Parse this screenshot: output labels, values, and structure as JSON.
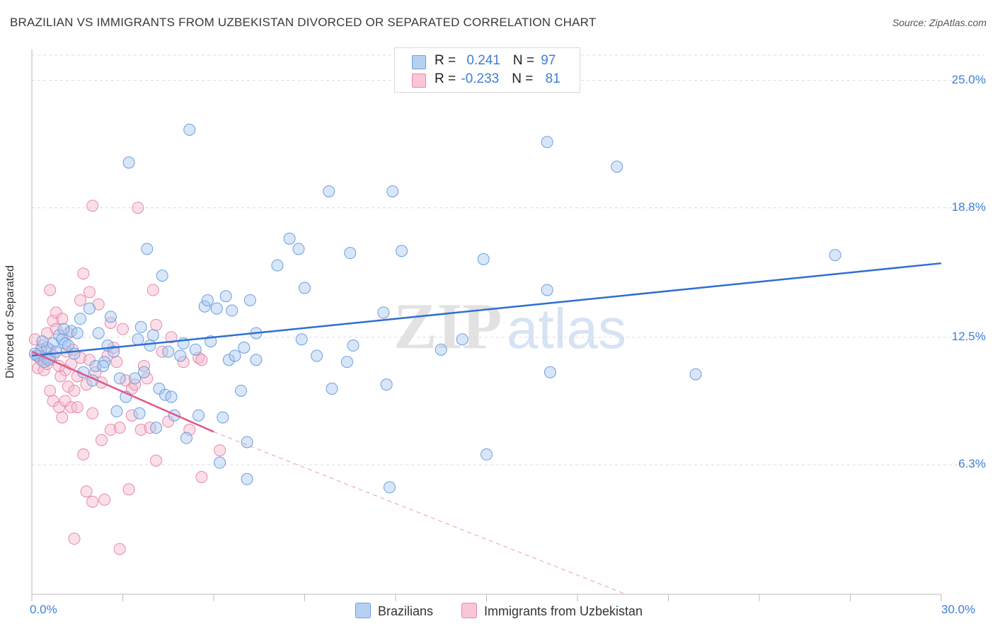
{
  "title": "BRAZILIAN VS IMMIGRANTS FROM UZBEKISTAN DIVORCED OR SEPARATED CORRELATION CHART",
  "source": "Source: ZipAtlas.com",
  "watermark": {
    "zip": "ZIP",
    "atlas": "atlas"
  },
  "legend": {
    "rows": [
      {
        "r_label": "R = ",
        "r_value": "0.241",
        "n_label": "N = ",
        "n_value": "97"
      },
      {
        "r_label": "R = ",
        "r_value": "-0.233",
        "n_label": "N = ",
        "n_value": "81"
      }
    ]
  },
  "bottom_legend": [
    "Brazilians",
    "Immigrants from Uzbekistan"
  ],
  "colors": {
    "blue_fill": "#a9c8f0",
    "blue_stroke": "#6b9fe0",
    "blue_line": "#2f6fd0",
    "pink_fill": "#f7b7cb",
    "pink_stroke": "#e889a8",
    "pink_line": "#e2578a",
    "tick_text": "#3d7fd6",
    "grid": "#dcdcdc"
  },
  "chart_data": {
    "type": "scatter",
    "title": "BRAZILIAN VS IMMIGRANTS FROM UZBEKISTAN DIVORCED OR SEPARATED CORRELATION CHART",
    "xlabel": "",
    "ylabel": "Divorced or Separated",
    "xlim": [
      0,
      30
    ],
    "ylim": [
      0,
      26.5
    ],
    "x_tick_labels": [
      "0.0%",
      "30.0%"
    ],
    "y_ticks": [
      6.3,
      12.5,
      18.8,
      25.0
    ],
    "y_tick_labels": [
      "6.3%",
      "12.5%",
      "18.8%",
      "25.0%"
    ],
    "grid": true,
    "legend_position": "top-center",
    "series": [
      {
        "name": "Brazilians",
        "r": 0.241,
        "n": 97,
        "trend": [
          [
            0,
            11.6
          ],
          [
            30,
            16.1
          ]
        ],
        "points": [
          [
            0.2,
            11.6
          ],
          [
            0.3,
            11.9
          ],
          [
            0.4,
            11.3
          ],
          [
            0.5,
            12.0
          ],
          [
            0.6,
            11.5
          ],
          [
            0.7,
            12.2
          ],
          [
            0.8,
            11.8
          ],
          [
            0.9,
            12.6
          ],
          [
            1.0,
            12.4
          ],
          [
            1.1,
            12.2
          ],
          [
            1.2,
            12.1
          ],
          [
            1.3,
            12.8
          ],
          [
            1.4,
            11.7
          ],
          [
            1.5,
            12.7
          ],
          [
            1.6,
            13.4
          ],
          [
            1.7,
            10.8
          ],
          [
            1.9,
            13.9
          ],
          [
            2.0,
            10.4
          ],
          [
            2.1,
            11.1
          ],
          [
            2.2,
            12.7
          ],
          [
            2.4,
            11.3
          ],
          [
            2.5,
            12.1
          ],
          [
            2.6,
            13.5
          ],
          [
            2.7,
            11.8
          ],
          [
            2.8,
            8.9
          ],
          [
            2.9,
            10.5
          ],
          [
            3.1,
            9.6
          ],
          [
            3.2,
            21.0
          ],
          [
            3.4,
            10.5
          ],
          [
            3.5,
            12.4
          ],
          [
            3.6,
            13.0
          ],
          [
            3.7,
            10.8
          ],
          [
            3.8,
            16.8
          ],
          [
            3.9,
            12.1
          ],
          [
            4.0,
            12.6
          ],
          [
            4.1,
            8.1
          ],
          [
            4.2,
            10.0
          ],
          [
            4.3,
            15.5
          ],
          [
            4.4,
            9.7
          ],
          [
            4.5,
            11.8
          ],
          [
            4.6,
            9.6
          ],
          [
            4.7,
            8.7
          ],
          [
            4.9,
            11.6
          ],
          [
            5.0,
            12.2
          ],
          [
            5.1,
            7.6
          ],
          [
            5.2,
            22.6
          ],
          [
            5.4,
            11.9
          ],
          [
            5.5,
            8.7
          ],
          [
            5.7,
            14.0
          ],
          [
            5.8,
            14.3
          ],
          [
            5.9,
            12.3
          ],
          [
            6.1,
            13.9
          ],
          [
            6.2,
            6.4
          ],
          [
            6.3,
            8.6
          ],
          [
            6.4,
            14.5
          ],
          [
            6.5,
            11.4
          ],
          [
            6.6,
            13.8
          ],
          [
            6.7,
            11.6
          ],
          [
            6.9,
            9.9
          ],
          [
            7.0,
            12.0
          ],
          [
            7.1,
            5.6
          ],
          [
            7.1,
            7.4
          ],
          [
            7.2,
            14.3
          ],
          [
            7.4,
            11.4
          ],
          [
            7.4,
            12.7
          ],
          [
            8.1,
            16.0
          ],
          [
            8.5,
            17.3
          ],
          [
            8.8,
            16.8
          ],
          [
            8.9,
            12.4
          ],
          [
            9.0,
            14.9
          ],
          [
            9.4,
            11.6
          ],
          [
            9.8,
            19.6
          ],
          [
            9.9,
            10.0
          ],
          [
            10.4,
            11.3
          ],
          [
            10.5,
            16.6
          ],
          [
            10.6,
            12.1
          ],
          [
            11.6,
            13.7
          ],
          [
            11.7,
            10.2
          ],
          [
            11.8,
            5.2
          ],
          [
            11.9,
            19.6
          ],
          [
            12.2,
            16.7
          ],
          [
            13.5,
            11.9
          ],
          [
            14.2,
            12.4
          ],
          [
            14.9,
            16.3
          ],
          [
            15.0,
            6.8
          ],
          [
            17.0,
            14.8
          ],
          [
            17.1,
            10.8
          ],
          [
            17.0,
            22.0
          ],
          [
            19.3,
            20.8
          ],
          [
            21.9,
            10.7
          ],
          [
            26.5,
            16.5
          ],
          [
            0.1,
            11.7
          ],
          [
            0.35,
            12.3
          ],
          [
            0.55,
            11.4
          ],
          [
            1.05,
            12.9
          ],
          [
            2.35,
            11.1
          ],
          [
            3.55,
            8.8
          ]
        ]
      },
      {
        "name": "Immigrants from Uzbekistan",
        "r": -0.233,
        "n": 81,
        "trend": [
          [
            0,
            11.8
          ],
          [
            6.0,
            7.9
          ]
        ],
        "trend_dashed": [
          [
            6.0,
            7.9
          ],
          [
            19.6,
            0
          ]
        ],
        "points": [
          [
            0.1,
            12.4
          ],
          [
            0.2,
            11.0
          ],
          [
            0.3,
            11.4
          ],
          [
            0.4,
            10.9
          ],
          [
            0.5,
            12.7
          ],
          [
            0.5,
            11.2
          ],
          [
            0.6,
            9.9
          ],
          [
            0.6,
            11.9
          ],
          [
            0.7,
            9.4
          ],
          [
            0.7,
            13.3
          ],
          [
            0.8,
            12.9
          ],
          [
            0.6,
            14.8
          ],
          [
            0.7,
            11.6
          ],
          [
            0.8,
            13.7
          ],
          [
            0.9,
            9.1
          ],
          [
            0.9,
            11.1
          ],
          [
            1.0,
            8.6
          ],
          [
            1.0,
            13.4
          ],
          [
            1.1,
            10.9
          ],
          [
            1.1,
            9.4
          ],
          [
            1.2,
            12.7
          ],
          [
            1.2,
            10.1
          ],
          [
            1.3,
            9.1
          ],
          [
            1.3,
            11.2
          ],
          [
            1.4,
            2.7
          ],
          [
            1.4,
            9.9
          ],
          [
            1.5,
            10.6
          ],
          [
            1.5,
            9.1
          ],
          [
            1.6,
            14.3
          ],
          [
            1.6,
            11.5
          ],
          [
            1.7,
            15.6
          ],
          [
            1.7,
            6.8
          ],
          [
            1.8,
            5.0
          ],
          [
            1.8,
            10.2
          ],
          [
            1.9,
            14.7
          ],
          [
            1.9,
            11.4
          ],
          [
            2.0,
            4.5
          ],
          [
            2.0,
            8.8
          ],
          [
            2.0,
            18.9
          ],
          [
            2.1,
            10.8
          ],
          [
            2.2,
            14.1
          ],
          [
            2.3,
            7.5
          ],
          [
            2.3,
            10.3
          ],
          [
            2.4,
            4.6
          ],
          [
            2.5,
            11.6
          ],
          [
            2.6,
            13.2
          ],
          [
            2.6,
            8.0
          ],
          [
            2.7,
            12.0
          ],
          [
            2.8,
            11.3
          ],
          [
            2.9,
            2.2
          ],
          [
            2.9,
            8.1
          ],
          [
            3.0,
            12.9
          ],
          [
            3.1,
            10.4
          ],
          [
            3.2,
            5.1
          ],
          [
            3.3,
            8.7
          ],
          [
            3.3,
            10.0
          ],
          [
            3.4,
            10.2
          ],
          [
            3.5,
            18.8
          ],
          [
            3.6,
            8.0
          ],
          [
            3.7,
            11.1
          ],
          [
            3.8,
            10.5
          ],
          [
            3.9,
            8.1
          ],
          [
            4.0,
            14.8
          ],
          [
            4.1,
            6.5
          ],
          [
            4.1,
            13.1
          ],
          [
            4.3,
            11.8
          ],
          [
            4.5,
            8.4
          ],
          [
            4.6,
            12.5
          ],
          [
            5.0,
            11.3
          ],
          [
            5.2,
            8.0
          ],
          [
            5.5,
            11.5
          ],
          [
            5.6,
            5.7
          ],
          [
            5.6,
            11.4
          ],
          [
            6.2,
            7.0
          ],
          [
            0.25,
            11.7
          ],
          [
            0.45,
            11.5
          ],
          [
            0.35,
            12.1
          ],
          [
            1.15,
            11.8
          ],
          [
            0.15,
            11.6
          ],
          [
            1.35,
            11.9
          ],
          [
            0.95,
            10.6
          ]
        ]
      }
    ]
  }
}
